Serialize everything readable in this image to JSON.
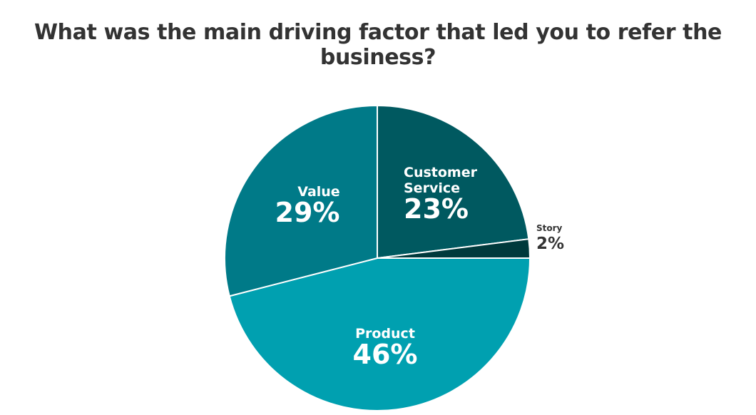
{
  "chart_data": {
    "type": "pie",
    "title": "What was the main driving factor that led you to refer the business?",
    "slices": [
      {
        "label": "Customer Service",
        "value": 23,
        "display": "23%",
        "color": "#005960"
      },
      {
        "label": "Story",
        "value": 2,
        "display": "2%",
        "color": "#003a3c"
      },
      {
        "label": "Product",
        "value": 46,
        "display": "46%",
        "color": "#00a0b0"
      },
      {
        "label": "Value",
        "value": 29,
        "display": "29%",
        "color": "#007a88"
      }
    ],
    "start_angle_deg": 0,
    "direction": "clockwise",
    "label_color_inside": "#ffffff",
    "label_color_outside": "#333333"
  }
}
